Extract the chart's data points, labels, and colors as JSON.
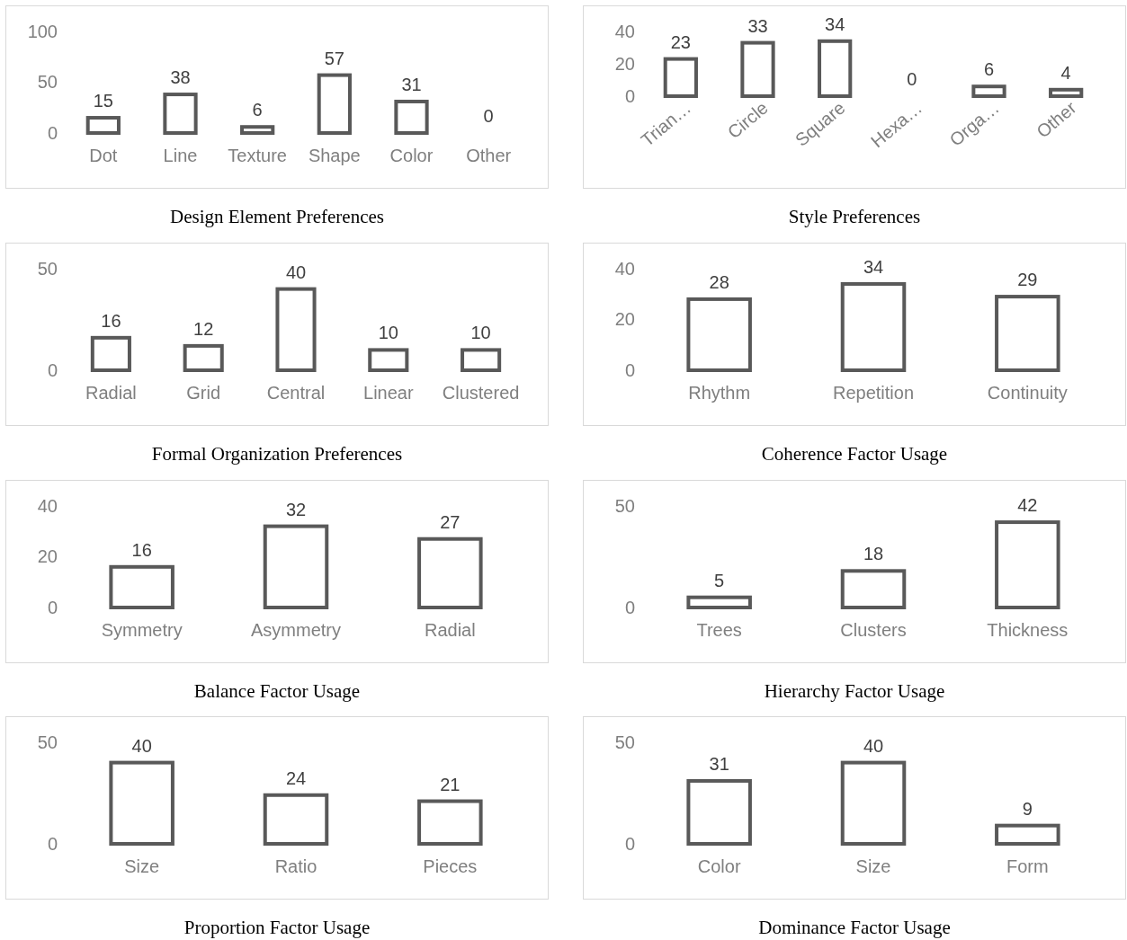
{
  "chart_data": [
    {
      "type": "bar",
      "title": "Design Element Preferences",
      "categories": [
        "Dot",
        "Line",
        "Texture",
        "Shape",
        "Color",
        "Other"
      ],
      "values": [
        15,
        38,
        6,
        57,
        31,
        0
      ],
      "color": "#595959",
      "ylim": [
        0,
        100
      ],
      "yticks": [
        0,
        50,
        100
      ],
      "data_labels": true
    },
    {
      "type": "bar",
      "title": "Style Preferences",
      "categories": [
        "Trian…",
        "Circle",
        "Square",
        "Hexa…",
        "Orga…",
        "Other"
      ],
      "values": [
        23,
        33,
        34,
        0,
        6,
        4
      ],
      "color": "#595959",
      "ylim": [
        0,
        40
      ],
      "yticks": [
        0,
        20,
        40
      ],
      "data_labels": true
    },
    {
      "type": "bar",
      "title": "Formal Organization Preferences",
      "categories": [
        "Radial",
        "Grid",
        "Central",
        "Linear",
        "Clustered"
      ],
      "values": [
        16,
        12,
        40,
        10,
        10
      ],
      "color": "#595959",
      "ylim": [
        0,
        50
      ],
      "yticks": [
        0,
        50
      ],
      "data_labels": true
    },
    {
      "type": "bar",
      "title": "Coherence Factor Usage",
      "categories": [
        "Rhythm",
        "Repetition",
        "Continuity"
      ],
      "values": [
        28,
        34,
        29
      ],
      "color": "#595959",
      "ylim": [
        0,
        40
      ],
      "yticks": [
        0,
        20,
        40
      ],
      "data_labels": true
    },
    {
      "type": "bar",
      "title": "Balance Factor Usage",
      "categories": [
        "Symmetry",
        "Asymmetry",
        "Radial"
      ],
      "values": [
        16,
        32,
        27
      ],
      "color": "#595959",
      "ylim": [
        0,
        40
      ],
      "yticks": [
        0,
        20,
        40
      ],
      "data_labels": true
    },
    {
      "type": "bar",
      "title": "Hierarchy Factor Usage",
      "categories": [
        "Trees",
        "Clusters",
        "Thickness"
      ],
      "values": [
        5,
        18,
        42
      ],
      "color": "#595959",
      "ylim": [
        0,
        50
      ],
      "yticks": [
        0,
        50
      ],
      "data_labels": true
    },
    {
      "type": "bar",
      "title": "Proportion Factor Usage",
      "categories": [
        "Size",
        "Ratio",
        "Pieces"
      ],
      "values": [
        40,
        24,
        21
      ],
      "color": "#595959",
      "ylim": [
        0,
        50
      ],
      "yticks": [
        0,
        50
      ],
      "data_labels": true
    },
    {
      "type": "bar",
      "title": "Dominance Factor Usage",
      "categories": [
        "Color",
        "Size",
        "Form"
      ],
      "values": [
        31,
        40,
        9
      ],
      "color": "#595959",
      "ylim": [
        0,
        50
      ],
      "yticks": [
        0,
        50
      ],
      "data_labels": true
    }
  ]
}
